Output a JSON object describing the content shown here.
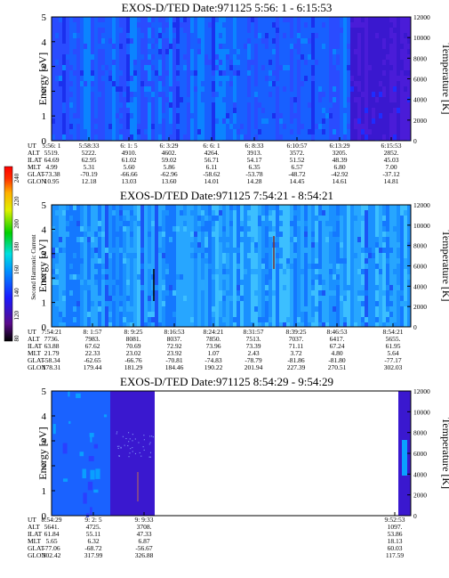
{
  "chart_data": {
    "type": "heatmap",
    "colorbar": {
      "label": "Second Harmonic Current",
      "ticks": [
        "80",
        "120",
        "140",
        "160",
        "180",
        "200",
        "220",
        "240"
      ]
    },
    "panels": [
      {
        "title": "EXOS-D/TED   Date:971125  5:56: 1 - 6:15:53",
        "ylabel": "Energy [eV]",
        "ylabel_right": "Temperature [K]",
        "ylim": [
          0,
          5
        ],
        "yticks": [
          "0",
          "1",
          "2",
          "3",
          "4",
          "5"
        ],
        "ylim_right": [
          0,
          12000
        ],
        "yticks_right": [
          "0",
          "2000",
          "4000",
          "6000",
          "8000",
          "10000",
          "12000"
        ],
        "row_labels": [
          "UT",
          "ALT",
          "ILAT",
          "MLT",
          "GLAT",
          "GLON"
        ],
        "columns": [
          [
            "5:56: 1",
            "5519.",
            "64.69",
            "4.99",
            "-73.38",
            "10.95"
          ],
          [
            "5:58:33",
            "5222.",
            "62.95",
            "5.31",
            "-70.19",
            "12.18"
          ],
          [
            "6: 1: 5",
            "4910.",
            "61.02",
            "5.60",
            "-66.66",
            "13.03"
          ],
          [
            "6: 3:29",
            "4602.",
            "59.02",
            "5.86",
            "-62.96",
            "13.60"
          ],
          [
            "6: 6: 1",
            "4264.",
            "56.71",
            "6.11",
            "-58.62",
            "14.01"
          ],
          [
            "6: 8:33",
            "3913.",
            "54.17",
            "6.35",
            "-53.78",
            "14.28"
          ],
          [
            "6:10:57",
            "3572.",
            "51.52",
            "6.57",
            "-48.72",
            "14.45"
          ],
          [
            "6:13:29",
            "3205.",
            "48.39",
            "6.80",
            "-42.92",
            "14.61"
          ],
          [
            "6:15:53",
            "2852.",
            "45.03",
            "7.00",
            "-37.12",
            "14.81"
          ]
        ]
      },
      {
        "title": "EXOS-D/TED   Date:971125  7:54:21 - 8:54:21",
        "ylabel": "Energy [eV]",
        "ylabel_right": "Temperature [K]",
        "ylim": [
          0,
          5
        ],
        "yticks": [
          "0",
          "1",
          "2",
          "3",
          "4",
          "5"
        ],
        "ylim_right": [
          0,
          12000
        ],
        "yticks_right": [
          "0",
          "2000",
          "4000",
          "6000",
          "8000",
          "10000",
          "12000"
        ],
        "row_labels": [
          "UT",
          "ALT",
          "ILAT",
          "MLT",
          "GLAT",
          "GLON"
        ],
        "columns": [
          [
            "7:54:21",
            "7736.",
            "63.88",
            "21.79",
            "-58.34",
            "178.31"
          ],
          [
            "8: 1:57",
            "7983.",
            "67.62",
            "22.33",
            "-62.65",
            "179.44"
          ],
          [
            "8: 9:25",
            "8081.",
            "70.69",
            "23.02",
            "-66.76",
            "181.29"
          ],
          [
            "8:16:53",
            "8037.",
            "72.92",
            "23.92",
            "-70.81",
            "184.46"
          ],
          [
            "8:24:21",
            "7850.",
            "73.96",
            "1.07",
            "-74.83",
            "190.22"
          ],
          [
            "8:31:57",
            "7513.",
            "73.39",
            "2.43",
            "-78.79",
            "201.94"
          ],
          [
            "8:39:25",
            "7037.",
            "71.11",
            "3.72",
            "-81.86",
            "227.39"
          ],
          [
            "8:46:53",
            "6417.",
            "67.24",
            "4.80",
            "-81.80",
            "270.51"
          ],
          [
            "8:54:21",
            "5655.",
            "61.95",
            "5.64",
            "-77.17",
            "302.03"
          ]
        ]
      },
      {
        "title": "EXOS-D/TED   Date:971125  8:54:29 - 9:54:29",
        "ylabel": "Energy [eV]",
        "ylabel_right": "Temperature [K]",
        "ylim": [
          0,
          5
        ],
        "yticks": [
          "0",
          "1",
          "2",
          "3",
          "4",
          "5"
        ],
        "ylim_right": [
          0,
          12000
        ],
        "yticks_right": [
          "0",
          "2000",
          "4000",
          "6000",
          "8000",
          "10000",
          "12000"
        ],
        "row_labels": [
          "UT",
          "ALT",
          "ILAT",
          "MLT",
          "GLAT",
          "GLON"
        ],
        "columns": [
          [
            "8:54:29",
            "5641.",
            "61.84",
            "5.65",
            "-77.06",
            "302.42"
          ],
          [
            "9: 2: 5",
            "4725.",
            "55.11",
            "6.32",
            "-68.72",
            "317.99"
          ],
          [
            "9: 9:33",
            "3708.",
            "47.33",
            "6.87",
            "-56.67",
            "326.88"
          ],
          [
            "9:52:53",
            "1097.",
            "53.86",
            "18.13",
            "60.03",
            "117.59"
          ]
        ]
      }
    ]
  }
}
